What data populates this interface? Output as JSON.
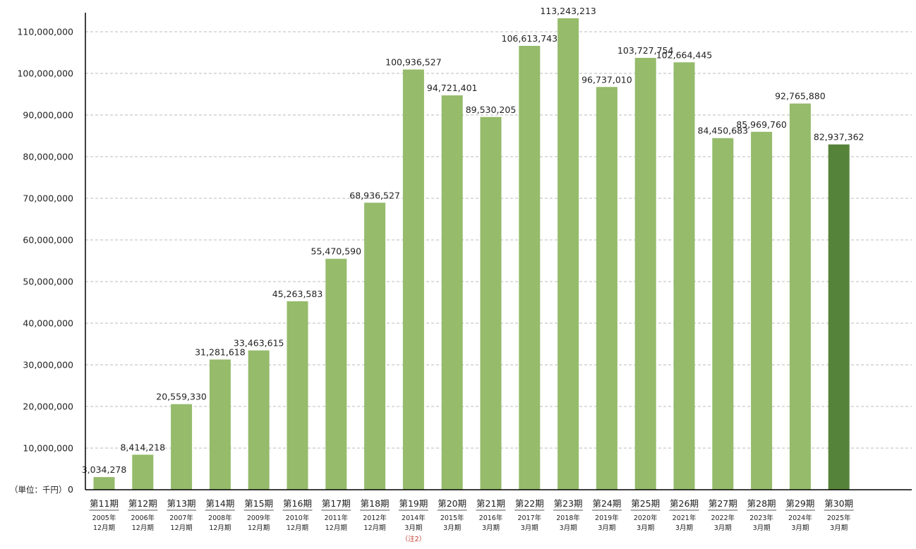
{
  "chart_data": {
    "type": "bar",
    "unit_label": "（単位：千円）",
    "zero_label": "0",
    "ylim": [
      0,
      120000000
    ],
    "yticks": [
      0,
      10000000,
      20000000,
      30000000,
      40000000,
      50000000,
      60000000,
      70000000,
      80000000,
      90000000,
      100000000,
      110000000
    ],
    "ytick_labels": [
      "0",
      "10,000,000",
      "20,000,000",
      "30,000,000",
      "40,000,000",
      "50,000,000",
      "60,000,000",
      "70,000,000",
      "80,000,000",
      "90,000,000",
      "100,000,000",
      "110,000,000"
    ],
    "grid": true,
    "colors": {
      "bar": "#95bb6b",
      "highlight": "#56833a"
    },
    "categories": [
      {
        "period": "第11期",
        "date1": "2005年",
        "date2": "12月期"
      },
      {
        "period": "第12期",
        "date1": "2006年",
        "date2": "12月期"
      },
      {
        "period": "第13期",
        "date1": "2007年",
        "date2": "12月期"
      },
      {
        "period": "第14期",
        "date1": "2008年",
        "date2": "12月期"
      },
      {
        "period": "第15期",
        "date1": "2009年",
        "date2": "12月期"
      },
      {
        "period": "第16期",
        "date1": "2010年",
        "date2": "12月期"
      },
      {
        "period": "第17期",
        "date1": "2011年",
        "date2": "12月期"
      },
      {
        "period": "第18期",
        "date1": "2012年",
        "date2": "12月期"
      },
      {
        "period": "第19期",
        "date1": "2014年",
        "date2": "3月期",
        "note": "（注2）"
      },
      {
        "period": "第20期",
        "date1": "2015年",
        "date2": "3月期"
      },
      {
        "period": "第21期",
        "date1": "2016年",
        "date2": "3月期"
      },
      {
        "period": "第22期",
        "date1": "2017年",
        "date2": "3月期"
      },
      {
        "period": "第23期",
        "date1": "2018年",
        "date2": "3月期"
      },
      {
        "period": "第24期",
        "date1": "2019年",
        "date2": "3月期"
      },
      {
        "period": "第25期",
        "date1": "2020年",
        "date2": "3月期"
      },
      {
        "period": "第26期",
        "date1": "2021年",
        "date2": "3月期"
      },
      {
        "period": "第27期",
        "date1": "2022年",
        "date2": "3月期"
      },
      {
        "period": "第28期",
        "date1": "2023年",
        "date2": "3月期"
      },
      {
        "period": "第29期",
        "date1": "2024年",
        "date2": "3月期"
      },
      {
        "period": "第30期",
        "date1": "2025年",
        "date2": "3月期"
      }
    ],
    "values": [
      3034278,
      8414218,
      20559330,
      31281618,
      33463615,
      45263583,
      55470590,
      68936527,
      100936527,
      94721401,
      89530205,
      106613743,
      113243213,
      96737010,
      103727754,
      102664445,
      84450683,
      85969760,
      92765880,
      82937362
    ],
    "value_labels": [
      "3,034,278",
      "8,414,218",
      "20,559,330",
      "31,281,618",
      "33,463,615",
      "45,263,583",
      "55,470,590",
      "68,936,527",
      "100,936,527",
      "94,721,401",
      "89,530,205",
      "106,613,743",
      "113,243,213",
      "96,737,010",
      "103,727,754",
      "102,664,445",
      "84,450,683",
      "85,969,760",
      "92,765,880",
      "82,937,362"
    ],
    "highlight_index": 19
  }
}
